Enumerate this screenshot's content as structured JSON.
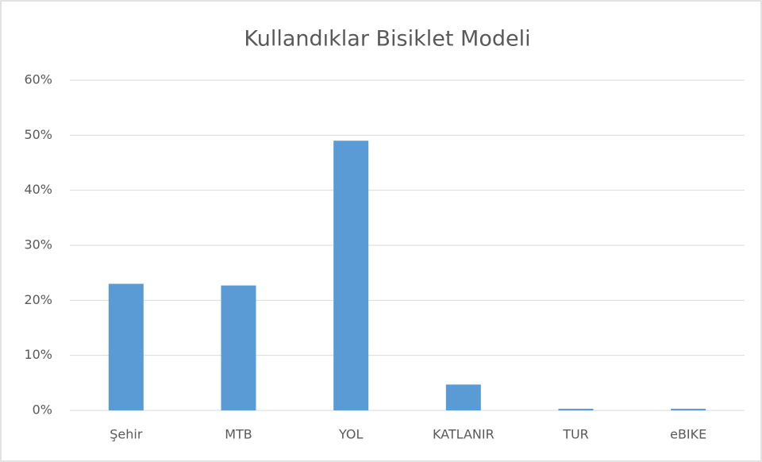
{
  "chart_data": {
    "type": "bar",
    "title": "Kullandıklar Bisiklet Modeli",
    "categories": [
      "Şehir",
      "MTB",
      "YOL",
      "KATLANIR",
      "TUR",
      "eBIKE"
    ],
    "values": [
      23,
      22.7,
      49,
      4.7,
      0.3,
      0.3
    ],
    "color": "#5b9bd5",
    "ylim": [
      0,
      60
    ],
    "yticks": [
      {
        "value": 0,
        "label": "0%"
      },
      {
        "value": 10,
        "label": "10%"
      },
      {
        "value": 20,
        "label": "20%"
      },
      {
        "value": 30,
        "label": "30%"
      },
      {
        "value": 40,
        "label": "40%"
      },
      {
        "value": 50,
        "label": "50%"
      },
      {
        "value": 60,
        "label": "60%"
      }
    ],
    "grid": true
  }
}
